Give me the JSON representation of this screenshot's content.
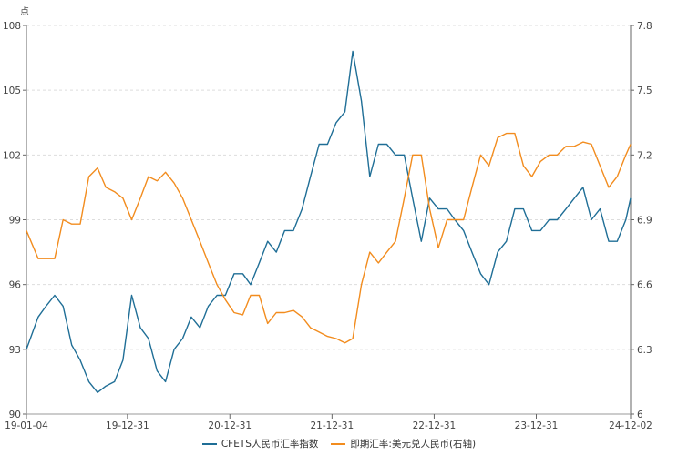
{
  "chart_data": {
    "type": "line",
    "left_axis": {
      "unit_label": "点",
      "ylim": [
        90,
        108
      ],
      "ticks": [
        "90",
        "93",
        "96",
        "99",
        "102",
        "105",
        "108"
      ]
    },
    "right_axis": {
      "ylim": [
        6,
        7.8
      ],
      "ticks": [
        "6",
        "6.3",
        "6.6",
        "6.9",
        "7.2",
        "7.5",
        "7.8"
      ]
    },
    "x_ticks": [
      {
        "date": "2019-01-04",
        "label": "19-01-04"
      },
      {
        "date": "2019-12-31",
        "label": "19-12-31"
      },
      {
        "date": "2020-12-31",
        "label": "20-12-31"
      },
      {
        "date": "2021-12-31",
        "label": "21-12-31"
      },
      {
        "date": "2022-12-31",
        "label": "22-12-31"
      },
      {
        "date": "2023-12-31",
        "label": "23-12-31"
      },
      {
        "date": "2024-12-02",
        "label": "24-12-02"
      }
    ],
    "grid": "horizontal dashed",
    "legend_position": "bottom",
    "dates": [
      "2019-01-04",
      "2019-02",
      "2019-03",
      "2019-04",
      "2019-05",
      "2019-06",
      "2019-07",
      "2019-08",
      "2019-09",
      "2019-10",
      "2019-11",
      "2019-12",
      "2020-01",
      "2020-02",
      "2020-03",
      "2020-04",
      "2020-05",
      "2020-06",
      "2020-07",
      "2020-08",
      "2020-09",
      "2020-10",
      "2020-11",
      "2020-12",
      "2021-01",
      "2021-02",
      "2021-03",
      "2021-04",
      "2021-05",
      "2021-06",
      "2021-07",
      "2021-08",
      "2021-09",
      "2021-10",
      "2021-11",
      "2021-12",
      "2022-01",
      "2022-02",
      "2022-03",
      "2022-04",
      "2022-05",
      "2022-06",
      "2022-07",
      "2022-08",
      "2022-09",
      "2022-10",
      "2022-11",
      "2022-12",
      "2023-01",
      "2023-02",
      "2023-03",
      "2023-04",
      "2023-05",
      "2023-06",
      "2023-07",
      "2023-08",
      "2023-09",
      "2023-10",
      "2023-11",
      "2023-12",
      "2024-01",
      "2024-02",
      "2024-03",
      "2024-04",
      "2024-05",
      "2024-06",
      "2024-07",
      "2024-08",
      "2024-09",
      "2024-10",
      "2024-11",
      "2024-12-02"
    ],
    "series": [
      {
        "name": "CFETS人民币汇率指数",
        "axis": "left",
        "color": "#1f6e96",
        "values": [
          93.0,
          94.5,
          95.0,
          95.5,
          95.0,
          93.2,
          92.5,
          91.5,
          91.0,
          91.3,
          91.5,
          92.5,
          95.5,
          94.0,
          93.5,
          92.0,
          91.5,
          93.0,
          93.5,
          94.5,
          94.0,
          95.0,
          95.5,
          95.5,
          96.5,
          96.5,
          96.0,
          97.0,
          98.0,
          97.5,
          98.5,
          98.5,
          99.5,
          101.0,
          102.5,
          102.5,
          103.5,
          104.0,
          106.8,
          104.5,
          101.0,
          102.5,
          102.5,
          102.0,
          102.0,
          100.0,
          98.0,
          100.0,
          99.5,
          99.5,
          99.0,
          98.5,
          97.5,
          96.5,
          96.0,
          97.5,
          98.0,
          99.5,
          99.5,
          98.5,
          98.5,
          99.0,
          99.0,
          99.5,
          100.0,
          100.5,
          99.0,
          99.5,
          98.0,
          98.0,
          99.0,
          100.0
        ]
      },
      {
        "name": "即期汇率:美元兑人民币(右轴)",
        "axis": "right",
        "color": "#f28c1e",
        "values": [
          6.85,
          6.72,
          6.72,
          6.72,
          6.9,
          6.88,
          6.88,
          7.1,
          7.14,
          7.05,
          7.03,
          7.0,
          6.9,
          7.0,
          7.1,
          7.08,
          7.12,
          7.07,
          7.0,
          6.9,
          6.8,
          6.7,
          6.6,
          6.53,
          6.47,
          6.46,
          6.55,
          6.55,
          6.42,
          6.47,
          6.47,
          6.48,
          6.45,
          6.4,
          6.38,
          6.36,
          6.35,
          6.33,
          6.35,
          6.6,
          6.75,
          6.7,
          6.75,
          6.8,
          7.0,
          7.2,
          7.2,
          6.95,
          6.77,
          6.9,
          6.9,
          6.9,
          7.05,
          7.2,
          7.15,
          7.28,
          7.3,
          7.3,
          7.15,
          7.1,
          7.17,
          7.2,
          7.2,
          7.24,
          7.24,
          7.26,
          7.25,
          7.15,
          7.05,
          7.1,
          7.2,
          7.25
        ]
      }
    ]
  }
}
